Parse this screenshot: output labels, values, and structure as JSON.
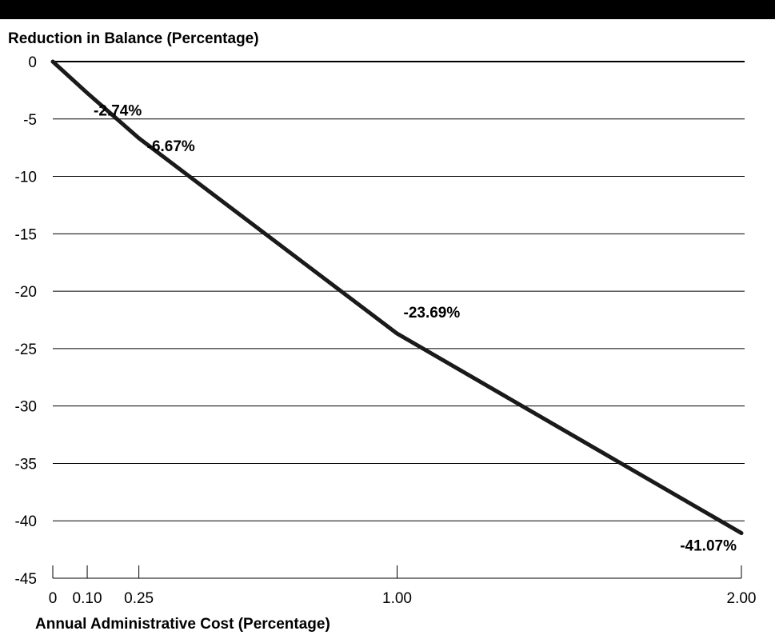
{
  "chart_data": {
    "type": "line",
    "ylabel": "Reduction in Balance (Percentage)",
    "xlabel": "Annual Administrative Cost (Percentage)",
    "ylim": [
      -45,
      0
    ],
    "y_ticks": [
      0,
      -5,
      -10,
      -15,
      -20,
      -25,
      -30,
      -35,
      -40,
      -45
    ],
    "y_tick_labels": [
      "0",
      "-5",
      "-10",
      "-15",
      "-20",
      "-25",
      "-30",
      "-35",
      "-40",
      "-45"
    ],
    "x_ticks": [
      0,
      0.1,
      0.25,
      1.0,
      2.0
    ],
    "x_tick_labels": [
      "0",
      "0.10",
      "0.25",
      "1.00",
      "2.00"
    ],
    "grid": true,
    "series": [
      {
        "x": [
          0,
          0.1,
          0.25,
          1.0,
          2.0
        ],
        "y": [
          0,
          -2.74,
          -6.67,
          -23.69,
          -41.07
        ],
        "labels": [
          "",
          "-2.74%",
          "-6.67%",
          "-23.69%",
          "-41.07%"
        ],
        "color": "#1a1a1a"
      }
    ]
  }
}
